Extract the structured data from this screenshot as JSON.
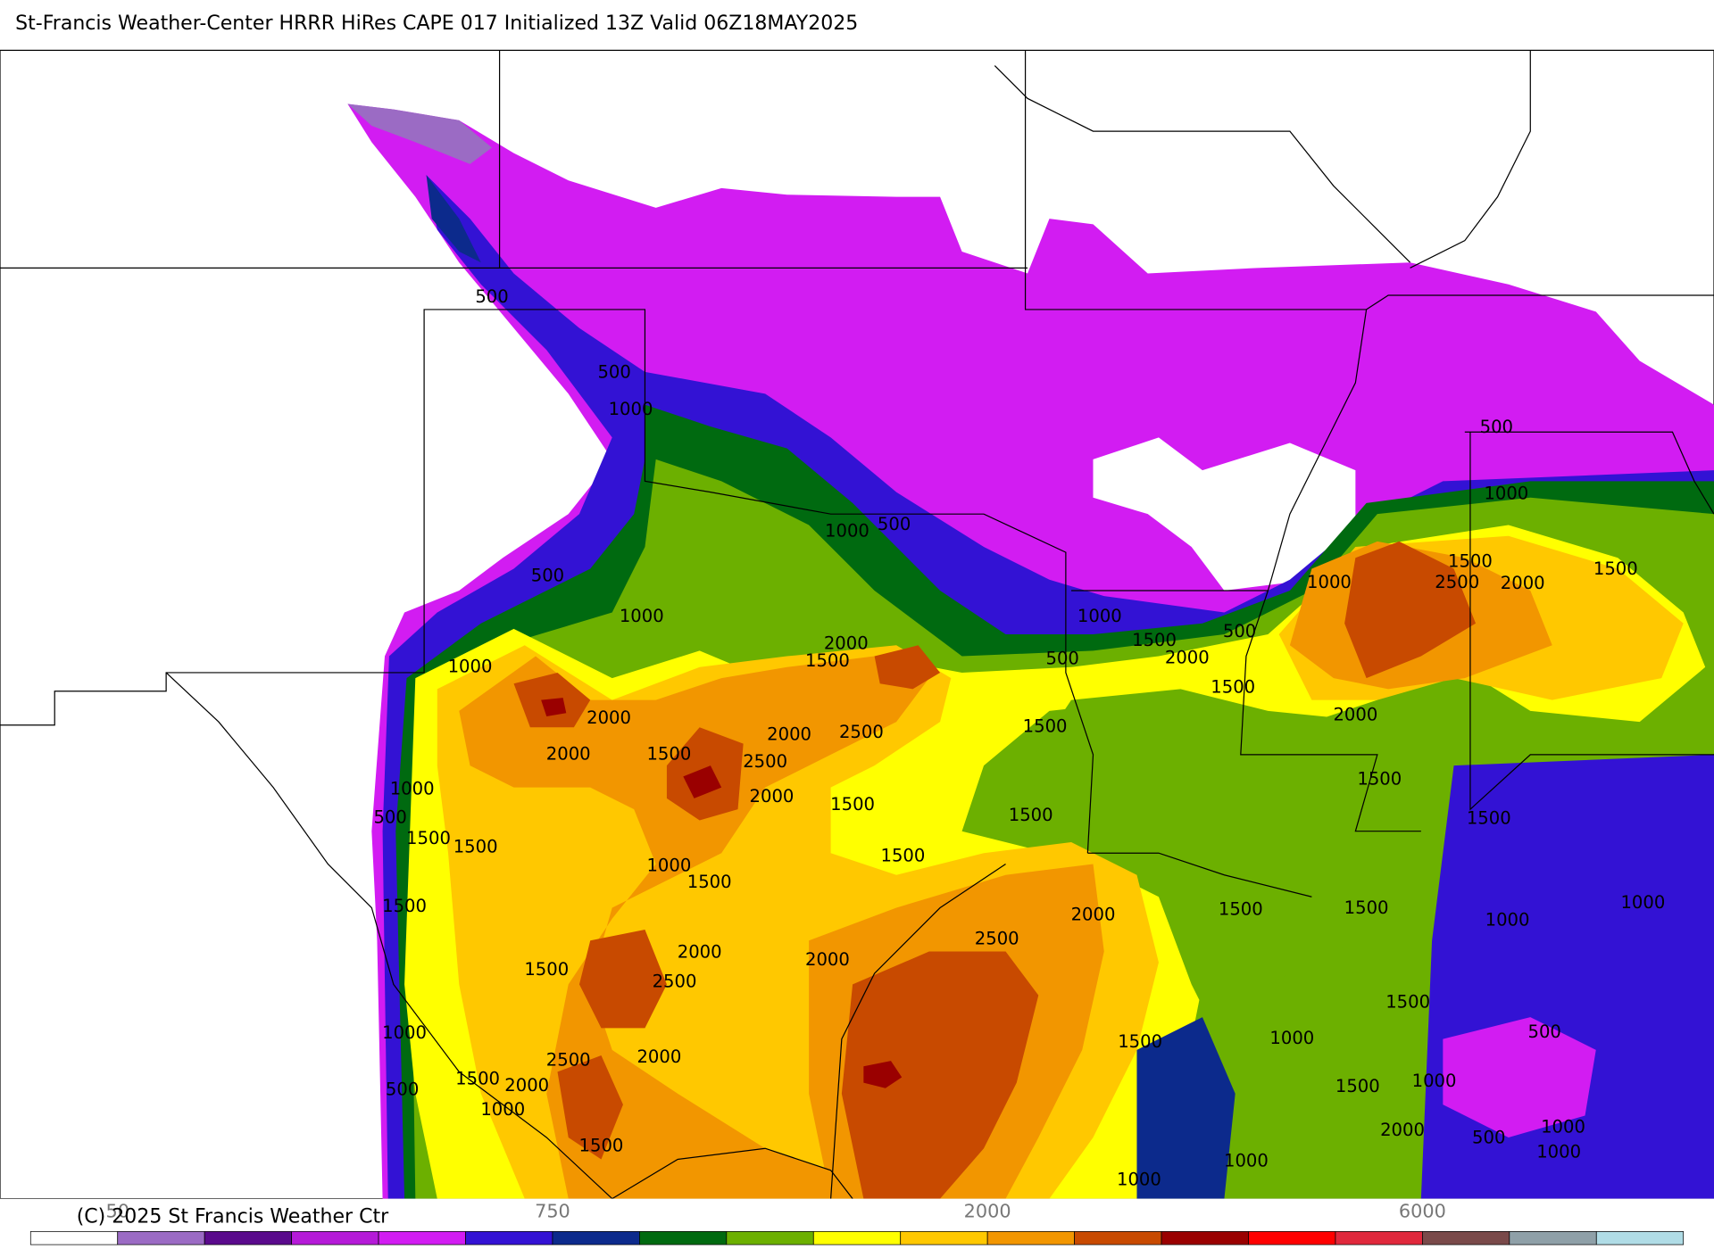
{
  "header": {
    "title": "St-Francis Weather-Center HRRR HiRes CAPE  017 Initialized  13Z Valid 06Z18MAY2025"
  },
  "footer": {
    "copyright": "(C) 2025 St Francis Weather Ctr"
  },
  "colorbar": {
    "colors": [
      "#ffffff",
      "#9b6bc4",
      "#5a0a8c",
      "#b51ad8",
      "#d21cf2",
      "#3312d4",
      "#0c2a8c",
      "#006a10",
      "#6cb000",
      "#ffff00",
      "#ffc800",
      "#f29600",
      "#c84a00",
      "#9a0000",
      "#ff0000",
      "#e0283c",
      "#7a4a4a",
      "#8fa0a8",
      "#b0dce6"
    ],
    "labels": [
      "50",
      "750",
      "2000",
      "6000"
    ]
  },
  "map": {
    "contour_labels": [
      "500",
      "500",
      "1000",
      "500",
      "1000",
      "1000",
      "1000",
      "500",
      "2000",
      "1500",
      "2000",
      "2000",
      "1500",
      "2000",
      "2500",
      "2500",
      "2000",
      "1500",
      "1000",
      "500",
      "1500",
      "1500",
      "1000",
      "1500",
      "1500",
      "1500",
      "1500",
      "1500",
      "1500",
      "2000",
      "2500",
      "2000",
      "2500",
      "2000",
      "1000",
      "2500",
      "2000",
      "500",
      "1500",
      "2000",
      "1000",
      "1500",
      "1000",
      "1500",
      "2000",
      "500",
      "500",
      "1500",
      "1000",
      "2500",
      "2000",
      "1500",
      "1500",
      "1000",
      "500",
      "2000",
      "1500",
      "1500",
      "1500",
      "1500",
      "1000",
      "1000",
      "1500",
      "500",
      "1000",
      "1500",
      "1500",
      "1000",
      "2000",
      "500",
      "1000",
      "1000",
      "1000",
      "1000"
    ]
  }
}
